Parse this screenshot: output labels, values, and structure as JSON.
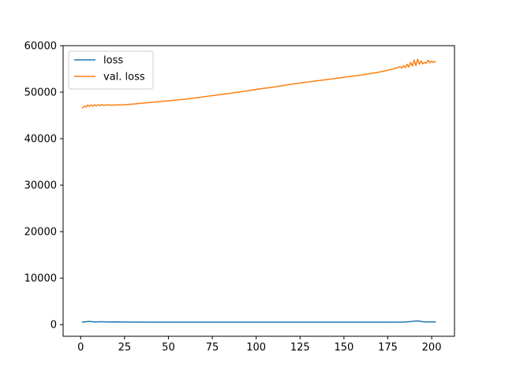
{
  "chart_data": {
    "type": "line",
    "title": "",
    "xlabel": "",
    "ylabel": "",
    "xlim": [
      -10,
      213
    ],
    "ylim": [
      -2500,
      60000
    ],
    "x_ticks": [
      0,
      25,
      50,
      75,
      100,
      125,
      150,
      175,
      200
    ],
    "y_ticks": [
      0,
      10000,
      20000,
      30000,
      40000,
      50000,
      60000
    ],
    "grid": false,
    "legend": "top-left",
    "series": [
      {
        "name": "loss",
        "color": "#1f77b4",
        "points": [
          [
            1,
            550
          ],
          [
            3,
            620
          ],
          [
            5,
            700
          ],
          [
            8,
            580
          ],
          [
            12,
            630
          ],
          [
            15,
            560
          ],
          [
            20,
            600
          ],
          [
            25,
            560
          ],
          [
            30,
            540
          ],
          [
            40,
            530
          ],
          [
            60,
            520
          ],
          [
            80,
            520
          ],
          [
            100,
            520
          ],
          [
            120,
            520
          ],
          [
            140,
            520
          ],
          [
            160,
            520
          ],
          [
            175,
            520
          ],
          [
            180,
            530
          ],
          [
            185,
            560
          ],
          [
            188,
            650
          ],
          [
            190,
            750
          ],
          [
            192,
            800
          ],
          [
            194,
            700
          ],
          [
            196,
            560
          ],
          [
            198,
            600
          ],
          [
            200,
            620
          ],
          [
            202,
            560
          ]
        ]
      },
      {
        "name": "val. loss",
        "color": "#ff7f0e",
        "points": [
          [
            1,
            46600
          ],
          [
            2,
            47000
          ],
          [
            3,
            46800
          ],
          [
            4,
            47200
          ],
          [
            5,
            46950
          ],
          [
            6,
            47250
          ],
          [
            7,
            47000
          ],
          [
            8,
            47300
          ],
          [
            9,
            47050
          ],
          [
            10,
            47300
          ],
          [
            11,
            47100
          ],
          [
            12,
            47350
          ],
          [
            13,
            47150
          ],
          [
            15,
            47300
          ],
          [
            17,
            47200
          ],
          [
            20,
            47250
          ],
          [
            25,
            47300
          ],
          [
            30,
            47450
          ],
          [
            40,
            47800
          ],
          [
            50,
            48150
          ],
          [
            60,
            48500
          ],
          [
            70,
            49000
          ],
          [
            80,
            49500
          ],
          [
            90,
            50000
          ],
          [
            100,
            50600
          ],
          [
            110,
            51100
          ],
          [
            120,
            51700
          ],
          [
            130,
            52200
          ],
          [
            140,
            52700
          ],
          [
            150,
            53200
          ],
          [
            160,
            53700
          ],
          [
            170,
            54300
          ],
          [
            175,
            54700
          ],
          [
            178,
            55000
          ],
          [
            180,
            55200
          ],
          [
            182,
            55500
          ],
          [
            183,
            55200
          ],
          [
            184,
            55700
          ],
          [
            185,
            55300
          ],
          [
            186,
            56000
          ],
          [
            187,
            55400
          ],
          [
            188,
            56400
          ],
          [
            189,
            55600
          ],
          [
            190,
            56900
          ],
          [
            191,
            55700
          ],
          [
            192,
            57100
          ],
          [
            193,
            56000
          ],
          [
            194,
            56700
          ],
          [
            195,
            56100
          ],
          [
            196,
            56400
          ],
          [
            197,
            56200
          ],
          [
            198,
            56900
          ],
          [
            199,
            56300
          ],
          [
            200,
            56700
          ],
          [
            201,
            56400
          ],
          [
            202,
            56600
          ]
        ]
      }
    ]
  }
}
